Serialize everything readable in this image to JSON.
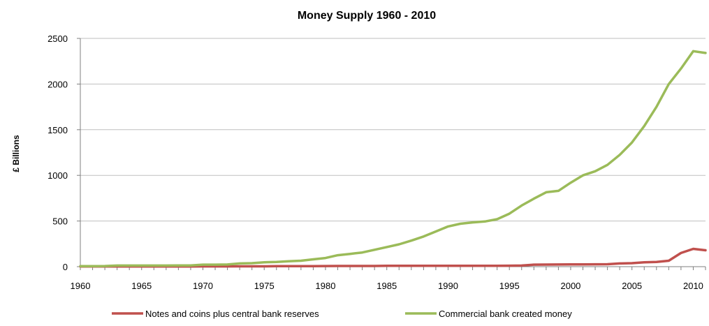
{
  "chart_data": {
    "type": "line",
    "title": "Money Supply 1960 - 2010",
    "xlabel": "",
    "ylabel": "£ Billions",
    "xlim": [
      1960,
      2011
    ],
    "ylim": [
      0,
      2500
    ],
    "xticks": [
      "1960",
      "1965",
      "1970",
      "1975",
      "1980",
      "1985",
      "1990",
      "1995",
      "2000",
      "2005",
      "2010"
    ],
    "yticks": [
      "0",
      "500",
      "1000",
      "1500",
      "2000",
      "2500"
    ],
    "grid": "horizontal",
    "legend_position": "bottom",
    "x": [
      1960,
      1961,
      1962,
      1963,
      1964,
      1965,
      1966,
      1967,
      1968,
      1969,
      1970,
      1971,
      1972,
      1973,
      1974,
      1975,
      1976,
      1977,
      1978,
      1979,
      1980,
      1981,
      1982,
      1983,
      1984,
      1985,
      1986,
      1987,
      1988,
      1989,
      1990,
      1991,
      1992,
      1993,
      1994,
      1995,
      1996,
      1997,
      1998,
      1999,
      2000,
      2001,
      2002,
      2003,
      2004,
      2005,
      2006,
      2007,
      2008,
      2009,
      2010,
      2011
    ],
    "series": [
      {
        "name": "Notes and coins plus central bank reserves",
        "color": "#c0504d",
        "values": [
          2,
          2,
          2,
          2,
          2,
          2,
          2,
          2,
          2,
          2,
          3,
          3,
          3,
          4,
          4,
          4,
          5,
          5,
          5,
          6,
          7,
          8,
          8,
          8,
          8,
          9,
          9,
          9,
          9,
          10,
          10,
          10,
          10,
          10,
          10,
          11,
          12,
          22,
          23,
          24,
          25,
          25,
          26,
          27,
          35,
          38,
          48,
          52,
          65,
          150,
          195,
          180
        ]
      },
      {
        "name": "Commercial bank created money",
        "color": "#9bbb59",
        "values": [
          5,
          6,
          7,
          12,
          12,
          12,
          12,
          12,
          13,
          13,
          22,
          22,
          24,
          35,
          38,
          48,
          52,
          60,
          65,
          80,
          95,
          125,
          140,
          155,
          185,
          215,
          245,
          285,
          330,
          385,
          440,
          470,
          485,
          495,
          520,
          580,
          670,
          745,
          815,
          830,
          920,
          1000,
          1045,
          1115,
          1225,
          1360,
          1540,
          1750,
          2000,
          2170,
          2360,
          2340
        ]
      }
    ]
  }
}
